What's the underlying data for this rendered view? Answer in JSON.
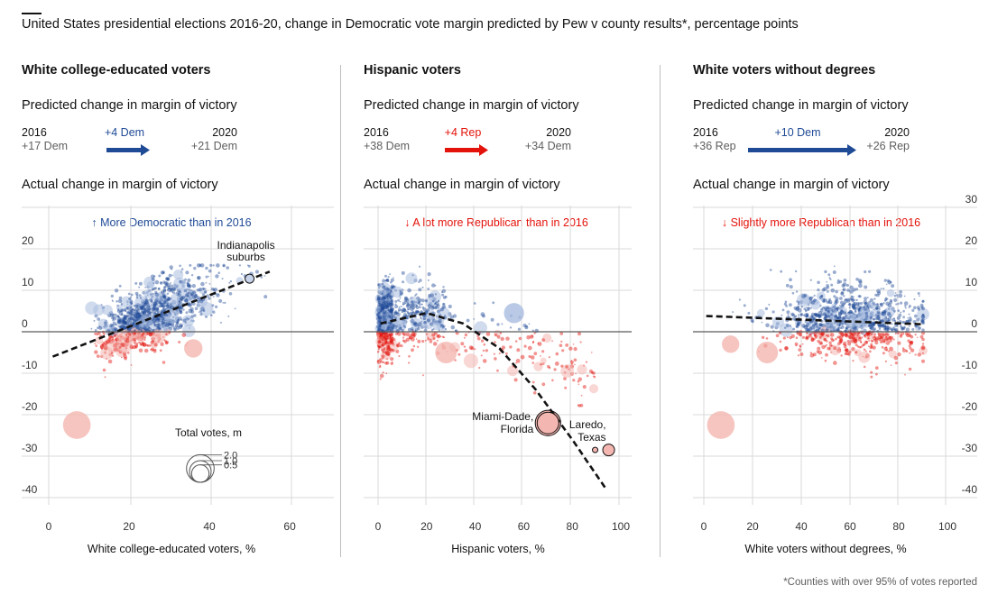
{
  "title": "United States presidential elections 2016-20, change in Democratic vote margin predicted by Pew v county results*, percentage points",
  "footnote": "*Counties with over 95% of votes reported",
  "colors": {
    "dem": "#1f4a96",
    "rep": "#e3120b",
    "dem_light": "#a9bde0",
    "rep_light": "#f4b6b0",
    "grid": "#d9d9d9",
    "zero": "#5a5a5a",
    "fit": "#121212"
  },
  "labels": {
    "predicted": "Predicted change in margin of victory",
    "actual": "Actual change in margin of victory",
    "y2016": "2016",
    "y2020": "2020"
  },
  "y_ticks": [
    "20",
    "10",
    "0",
    "-10",
    "-20",
    "-30",
    "-40"
  ],
  "y_tick_values": [
    20,
    10,
    0,
    -10,
    -20,
    -30,
    -40
  ],
  "y_top_tick": "30",
  "y_top_tick_value": 30,
  "size_legend": {
    "title": "Total votes, m",
    "values": [
      "2.0",
      "1.0",
      "0.5"
    ],
    "value_nums": [
      2.0,
      1.0,
      0.5
    ]
  },
  "panels": [
    {
      "title": "White college-educated voters",
      "pred_2016": "+17 Dem",
      "pred_2020": "+21 Dem",
      "pred_change": "+4 Dem",
      "pred_party": "dem",
      "annotation": "↑ More Democratic than in 2016",
      "annotation_party": "dem",
      "xlabel": "White college-educated voters, %",
      "x_ticks": [
        "0",
        "20",
        "40",
        "60"
      ],
      "x_tick_values": [
        0,
        20,
        40,
        60
      ],
      "callouts": [
        {
          "lines": [
            "Indianapolis",
            "suburbs"
          ],
          "x": 50,
          "y": 12.8
        }
      ]
    },
    {
      "title": "Hispanic voters",
      "pred_2016": "+38 Dem",
      "pred_2020": "+34 Dem",
      "pred_change": "+4 Rep",
      "pred_party": "rep",
      "annotation": "↓ A lot more Republican than in 2016",
      "annotation_party": "rep",
      "xlabel": "Hispanic voters, %",
      "x_ticks": [
        "0",
        "20",
        "40",
        "60",
        "80",
        "100"
      ],
      "x_tick_values": [
        0,
        20,
        40,
        60,
        80,
        100
      ],
      "callouts": [
        {
          "lines": [
            "Miami-Dade,",
            "Florida"
          ],
          "x": 70,
          "y": -22
        },
        {
          "lines": [
            "Laredo,",
            "Texas"
          ],
          "x": 95,
          "y": -28.5
        }
      ]
    },
    {
      "title": "White voters without degrees",
      "pred_2016": "+36 Rep",
      "pred_2020": "+26 Rep",
      "pred_change": "+10 Dem",
      "pred_party": "dem",
      "annotation": "↓ Slightly more Republican than in 2016",
      "annotation_party": "rep",
      "xlabel": "White voters without degrees, %",
      "x_ticks": [
        "0",
        "20",
        "40",
        "60",
        "80",
        "100"
      ],
      "x_tick_values": [
        0,
        20,
        40,
        60,
        80,
        100
      ],
      "callouts": []
    }
  ],
  "chart_data": [
    {
      "type": "scatter",
      "title": "White college-educated voters",
      "xlabel": "White college-educated voters, %",
      "ylabel": "Actual change in margin of victory",
      "xlim": [
        0,
        62
      ],
      "ylim": [
        -42,
        32
      ],
      "fit_line": [
        [
          1,
          -6
        ],
        [
          55,
          14.5
        ]
      ],
      "highlight_points": [
        {
          "label": "Indianapolis suburbs",
          "x": 50,
          "y": 12.8
        },
        {
          "x": 7,
          "y": -22.5,
          "size": 2.0,
          "party": "rep"
        },
        {
          "x": 36,
          "y": -4,
          "size": 0.6,
          "party": "rep"
        }
      ]
    },
    {
      "type": "scatter",
      "title": "Hispanic voters",
      "xlabel": "Hispanic voters, %",
      "ylabel": "Actual change in margin of victory",
      "xlim": [
        0,
        100
      ],
      "ylim": [
        -42,
        32
      ],
      "fit_line": [
        [
          1,
          2
        ],
        [
          20,
          4.5
        ],
        [
          35,
          2
        ],
        [
          50,
          -4
        ],
        [
          65,
          -14
        ],
        [
          80,
          -26
        ],
        [
          94,
          -38
        ]
      ],
      "highlight_points": [
        {
          "label": "Miami-Dade, Florida",
          "x": 70,
          "y": -22,
          "size": 1.6,
          "party": "rep"
        },
        {
          "label": "Laredo, Texas",
          "x": 95,
          "y": -28.5,
          "size": 0.1,
          "party": "rep"
        },
        {
          "x": 56,
          "y": 4.5,
          "size": 0.8,
          "party": "dem"
        },
        {
          "x": 28,
          "y": -5,
          "size": 1.0,
          "party": "rep"
        }
      ]
    },
    {
      "type": "scatter",
      "title": "White voters without degrees",
      "xlabel": "White voters without degrees, %",
      "ylabel": "Actual change in margin of victory",
      "xlim": [
        0,
        100
      ],
      "ylim": [
        -42,
        32
      ],
      "fit_line": [
        [
          1,
          3.8
        ],
        [
          90,
          1.8
        ]
      ],
      "highlight_points": [
        {
          "x": 7,
          "y": -22.5,
          "size": 2.0,
          "party": "rep"
        },
        {
          "x": 26,
          "y": -5,
          "size": 1.0,
          "party": "rep"
        },
        {
          "x": 11,
          "y": -3,
          "size": 0.5,
          "party": "rep"
        }
      ]
    }
  ]
}
